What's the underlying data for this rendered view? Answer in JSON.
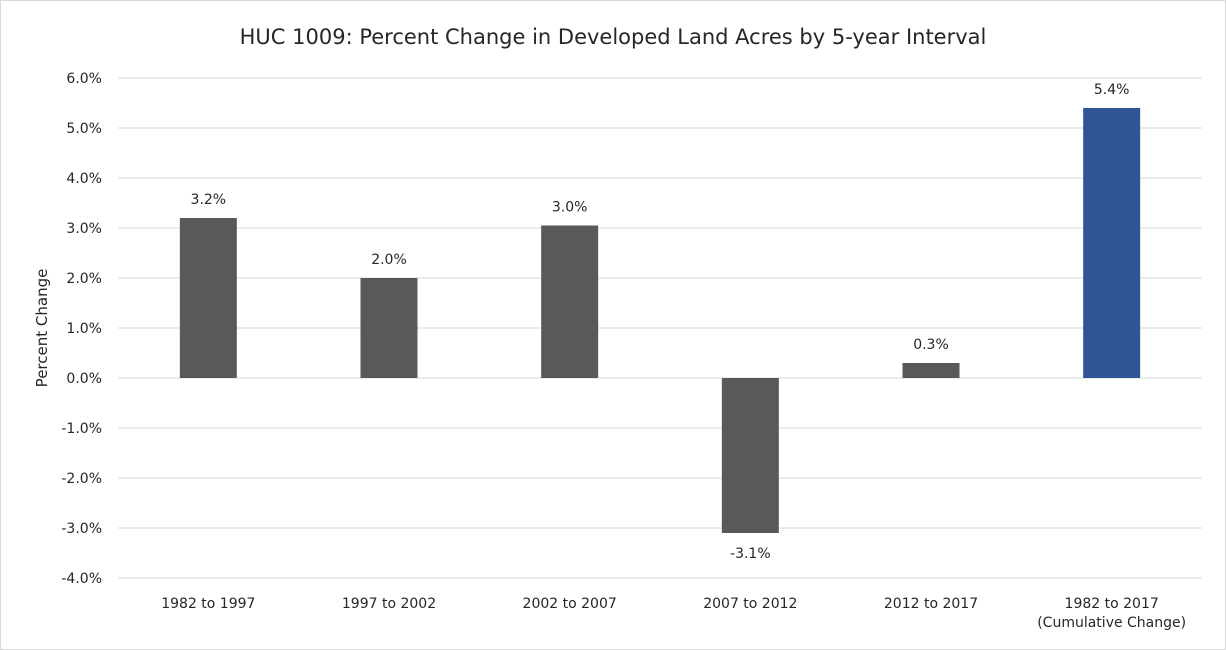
{
  "chart_data": {
    "type": "bar",
    "title": "HUC 1009: Percent Change in Developed Land Acres by 5-year Interval",
    "xlabel": "",
    "ylabel": "Percent Change",
    "ylim": [
      -4.0,
      6.0
    ],
    "yticks": [
      "6.0%",
      "5.0%",
      "4.0%",
      "3.0%",
      "2.0%",
      "1.0%",
      "0.0%",
      "-1.0%",
      "-2.0%",
      "-3.0%",
      "-4.0%"
    ],
    "grid": true,
    "legend": "none",
    "categories": [
      [
        "1982  to 1997"
      ],
      [
        "1997  to 2002"
      ],
      [
        "2002  to 2007"
      ],
      [
        "2007  to 2012"
      ],
      [
        "2012  to 2017"
      ],
      [
        "1982 to 2017",
        "(Cumulative Change)"
      ]
    ],
    "values": [
      3.2,
      2.0,
      3.05,
      -3.1,
      0.3,
      5.4
    ],
    "data_labels": [
      "3.2%",
      "2.0%",
      "3.0%",
      "-3.1%",
      "0.3%",
      "5.4%"
    ],
    "colors": [
      "#595959",
      "#595959",
      "#595959",
      "#595959",
      "#595959",
      "#2f5597"
    ],
    "gridline_color": "#d9d9d9",
    "text_color": "#262626"
  }
}
